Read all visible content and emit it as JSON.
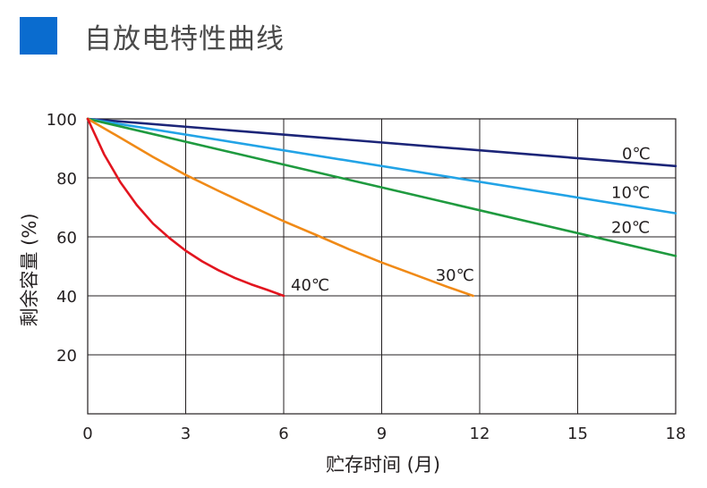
{
  "header": {
    "title": "自放电特性曲线"
  },
  "colors": {
    "title_square": "#0a6ccf",
    "grid": "#231f20"
  },
  "chart_data": {
    "type": "line",
    "title": "自放电特性曲线",
    "xlabel": "贮存时间 (月)",
    "ylabel": "剩余容量 (%)",
    "xlim": [
      0,
      18
    ],
    "ylim": [
      0,
      100
    ],
    "xticks": [
      0,
      3,
      6,
      9,
      12,
      15,
      18
    ],
    "yticks": [
      20,
      40,
      60,
      80,
      100
    ],
    "grid": true,
    "series": [
      {
        "name": "0℃",
        "color": "#1c2578",
        "x": [
          0,
          18
        ],
        "y": [
          100,
          84
        ]
      },
      {
        "name": "10℃",
        "color": "#22a3e6",
        "x": [
          0,
          18
        ],
        "y": [
          100,
          68
        ]
      },
      {
        "name": "20℃",
        "color": "#1f9a3f",
        "x": [
          0,
          18
        ],
        "y": [
          100,
          53.5
        ]
      },
      {
        "name": "30℃",
        "color": "#f08a17",
        "x": [
          0,
          1,
          2,
          3,
          4,
          5,
          6,
          7,
          8,
          9,
          10,
          11,
          11.8
        ],
        "y": [
          100,
          93.6,
          87.1,
          81,
          75.6,
          70.4,
          65.3,
          60.6,
          55.8,
          51.3,
          47.2,
          43.1,
          40
        ]
      },
      {
        "name": "40℃",
        "color": "#e2151f",
        "x": [
          0,
          0.5,
          1,
          1.5,
          2,
          2.5,
          3,
          3.5,
          4,
          4.5,
          5,
          5.5,
          6
        ],
        "y": [
          100,
          88,
          78.5,
          70.8,
          64.5,
          59.6,
          55.3,
          51.7,
          48.7,
          46.1,
          43.9,
          42,
          40
        ]
      }
    ]
  }
}
